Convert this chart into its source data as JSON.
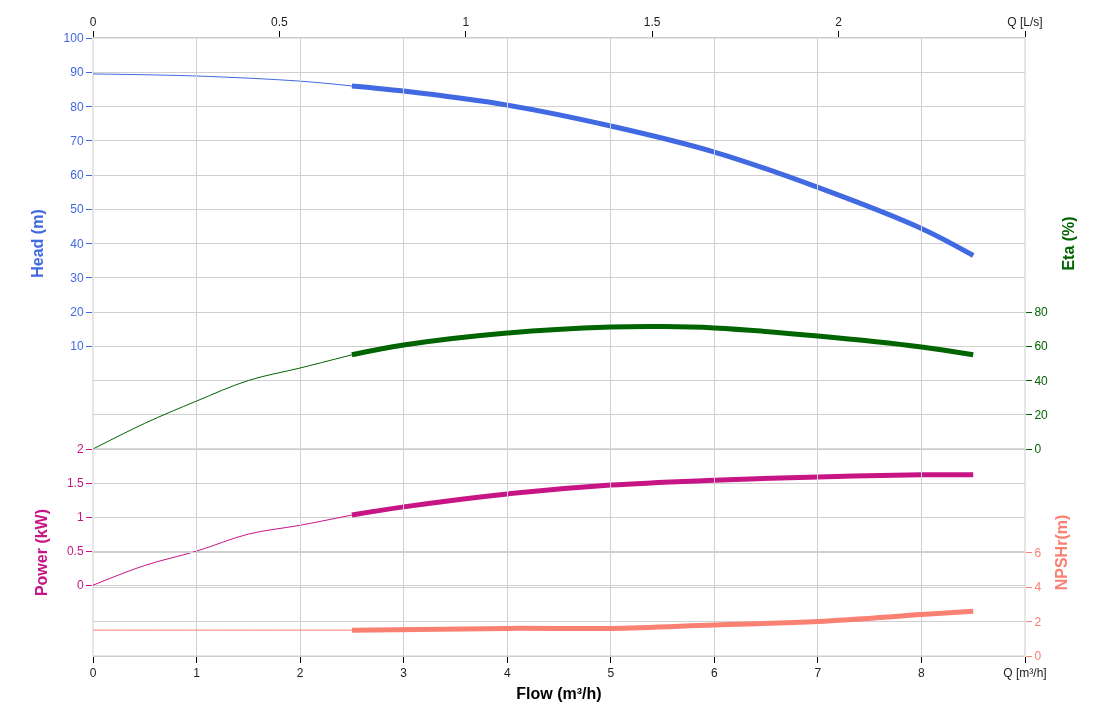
{
  "chart_data": [
    {
      "type": "line",
      "ylabel": "Head (m)",
      "y2label": "Eta (%)",
      "xlim": [
        0,
        9
      ],
      "x2lim": [
        0,
        2.5
      ],
      "x2ticks": [
        0,
        0.5,
        1,
        1.5,
        2,
        {
          "value": 2.5,
          "label": "Q [L/s]"
        }
      ],
      "ylim": [
        -20,
        100
      ],
      "yticks": [
        10,
        20,
        30,
        40,
        50,
        60,
        70,
        80,
        90,
        100
      ],
      "y2lim": [
        0,
        240
      ],
      "y2ticks": [
        0,
        20,
        40,
        60,
        80
      ],
      "grid": true,
      "line_style": "solid",
      "series": [
        {
          "color": "#4169e1",
          "x": [
            0,
            1,
            2,
            2.5
          ],
          "values": [
            89.5,
            88.9,
            87.4,
            86
          ]
        },
        {
          "color": "#4169e1",
          "x": [
            2.5,
            3,
            4,
            5,
            6,
            7,
            8,
            8.5
          ],
          "values": [
            86,
            84.5,
            80.4,
            74.3,
            66.7,
            56.4,
            44.4,
            36.5
          ]
        },
        {
          "color": "#006400",
          "axis": "y2",
          "x": [
            0,
            0.5,
            1,
            1.5,
            2,
            2.5
          ],
          "values": [
            0,
            15,
            28,
            40,
            47.3,
            55
          ]
        },
        {
          "color": "#006400",
          "axis": "y2",
          "x": [
            2.5,
            3,
            4,
            5,
            5.5,
            6,
            7,
            8,
            8.5
          ],
          "values": [
            55,
            60.7,
            67.7,
            71.2,
            71.5,
            70.7,
            66,
            59.6,
            55
          ]
        }
      ]
    },
    {
      "type": "line",
      "xlabel": "Flow (m³/h)",
      "ylabel": "Power (kW)",
      "y2label": "NPSHr(m)",
      "xlim": [
        0,
        9
      ],
      "xticks": [
        0,
        1,
        2,
        3,
        4,
        5,
        6,
        7,
        8,
        {
          "value": 9,
          "label": "Q [m³/h]"
        }
      ],
      "ylim": [
        -1.04,
        2
      ],
      "yticks": [
        0,
        0.5,
        1,
        1.5,
        2
      ],
      "y2lim": [
        0,
        12
      ],
      "y2ticks": [
        0,
        2,
        4,
        6
      ],
      "grid": true,
      "line_style": "solid",
      "series": [
        {
          "color": "#c71585",
          "x": [
            0,
            0.5,
            1,
            1.5,
            2,
            2.5
          ],
          "values": [
            0,
            0.29,
            0.5,
            0.75,
            0.88,
            1.03
          ]
        },
        {
          "color": "#c71585",
          "x": [
            2.5,
            3,
            4,
            5,
            6,
            7,
            8,
            8.5
          ],
          "values": [
            1.03,
            1.15,
            1.34,
            1.47,
            1.54,
            1.59,
            1.62,
            1.62
          ]
        },
        {
          "color": "#fa8072",
          "axis": "y2",
          "x": [
            0,
            1,
            2,
            2.5
          ],
          "values": [
            1.5,
            1.5,
            1.5,
            1.5
          ]
        },
        {
          "color": "#fa8072",
          "axis": "y2",
          "x": [
            2.5,
            4,
            5,
            6,
            7,
            8,
            8.5
          ],
          "values": [
            1.5,
            1.6,
            1.6,
            1.8,
            2,
            2.4,
            2.6
          ]
        }
      ]
    }
  ]
}
